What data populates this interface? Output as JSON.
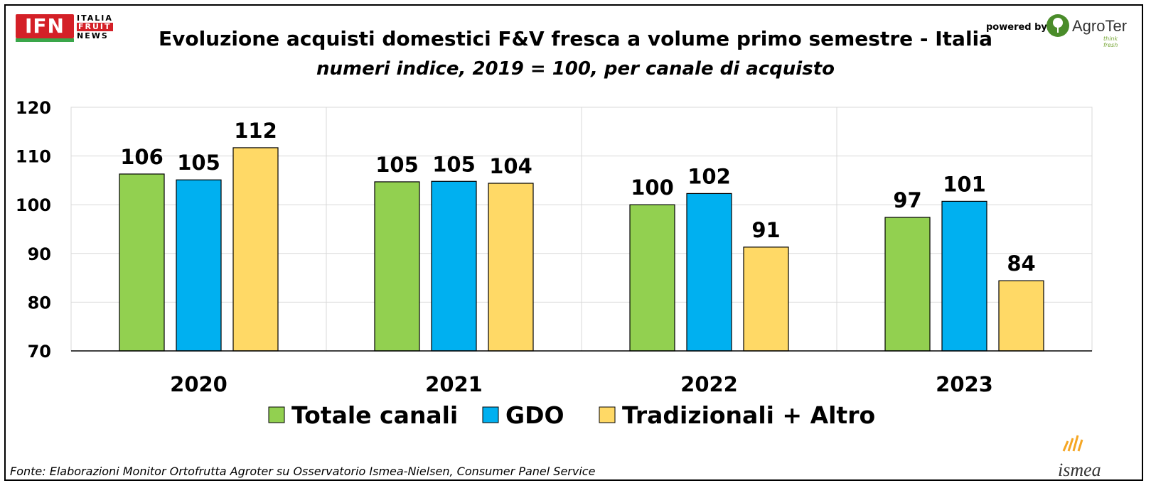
{
  "header": {
    "title": "Evoluzione acquisti domestici F&V fresca a volume primo semestre - Italia",
    "subtitle": "numeri indice, 2019 = 100, per canale di acquisto",
    "powered_by": "powered by"
  },
  "logos": {
    "ifn_text": "IFN",
    "ifn_side": [
      "ITALIA",
      "FRUIT",
      "NEWS"
    ],
    "agroter_name": "AgroTer",
    "agroter_tagline": "think fresh",
    "ismea_name": "ismea"
  },
  "colors": {
    "totale": "#92d050",
    "gdo": "#00b0f0",
    "tradizionali": "#ffd966",
    "grid": "#d9d9d9"
  },
  "chart_data": {
    "type": "bar",
    "categories": [
      "2020",
      "2021",
      "2022",
      "2023"
    ],
    "series": [
      {
        "name": "Totale canali",
        "values": [
          106.3,
          104.7,
          100.0,
          97.4
        ],
        "labels": [
          "106",
          "105",
          "100",
          "97"
        ]
      },
      {
        "name": "GDO",
        "values": [
          105.1,
          104.8,
          102.3,
          100.7
        ],
        "labels": [
          "105",
          "105",
          "102",
          "101"
        ]
      },
      {
        "name": "Tradizionali + Altro",
        "values": [
          111.7,
          104.4,
          91.3,
          84.4
        ],
        "labels": [
          "112",
          "104",
          "91",
          "84"
        ]
      }
    ],
    "yticks": [
      "70",
      "80",
      "90",
      "100",
      "110",
      "120"
    ],
    "ylim": [
      70,
      120
    ],
    "grid": true,
    "legend_position": "bottom"
  },
  "footer": {
    "source": "Fonte: Elaborazioni Monitor Ortofrutta Agroter su Osservatorio Ismea-Nielsen, Consumer Panel Service"
  }
}
